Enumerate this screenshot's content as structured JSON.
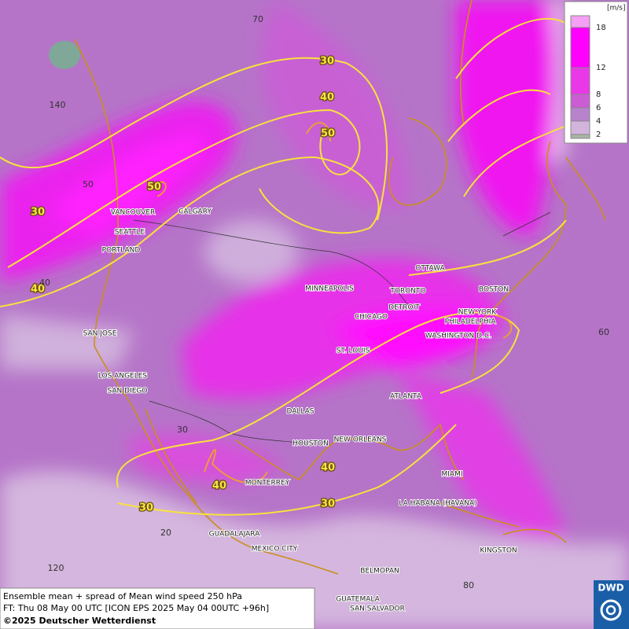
{
  "legend": {
    "unit": "[m/s]",
    "levels": [
      18,
      12,
      8,
      6,
      4,
      2
    ]
  },
  "cities": [
    "VANCOUVER",
    "CALGARY",
    "SEATTLE",
    "PORTLAND",
    "MINNEAPOLIS",
    "TORONTO",
    "OTTAWA",
    "BOSTON",
    "DETROIT",
    "CHICAGO",
    "NEW YORK",
    "PHILADELPHIA",
    "WASHINGTON D.C.",
    "SAN JOSE",
    "ST. LOUIS",
    "LOS ANGELES",
    "SAN DIEGO",
    "ATLANTA",
    "DALLAS",
    "HOUSTON",
    "NEW ORLEANS",
    "MIAMI",
    "MONTERREY",
    "LA HABANA (HAVANA)",
    "GUADALAJARA",
    "MEXICO CITY",
    "KINGSTON",
    "BELMOPAN",
    "GUATEMALA",
    "SAN SALVADOR"
  ],
  "contour_labels": [
    30,
    40,
    50,
    50,
    30,
    40,
    40,
    40,
    30,
    30
  ],
  "graticule_labels": [
    70,
    140,
    50,
    40,
    60,
    30,
    20,
    120,
    80
  ],
  "footer": {
    "line1": "Ensemble mean + spread of Mean wind speed 250 hPa",
    "line2": "FT: Thu 08 May 00 UTC [ICON EPS 2025 May 04 00UTC +96h]",
    "copyright": "©2025 Deutscher Wetterdienst"
  },
  "logo": "DWD"
}
